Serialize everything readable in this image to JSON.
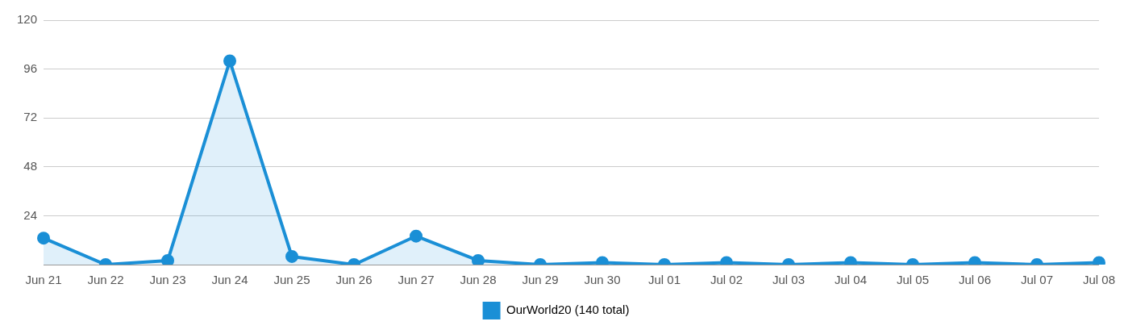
{
  "chart_data": {
    "type": "area",
    "categories": [
      "Jun 21",
      "Jun 22",
      "Jun 23",
      "Jun 24",
      "Jun 25",
      "Jun 26",
      "Jun 27",
      "Jun 28",
      "Jun 29",
      "Jun 30",
      "Jul 01",
      "Jul 02",
      "Jul 03",
      "Jul 04",
      "Jul 05",
      "Jul 06",
      "Jul 07",
      "Jul 08"
    ],
    "series": [
      {
        "name": "OurWorld20 (140 total)",
        "color": "#1a8fd6",
        "values": [
          13,
          0,
          2,
          100,
          4,
          0,
          14,
          2,
          0,
          1,
          0,
          1,
          0,
          1,
          0,
          1,
          0,
          1
        ]
      }
    ],
    "ylim": [
      0,
      120
    ],
    "yticks": [
      {
        "value": 0,
        "label": null
      },
      24,
      48,
      72,
      96,
      120
    ],
    "grid": "y",
    "legend": "bottom",
    "marker": "circle",
    "line_style": "solid"
  }
}
